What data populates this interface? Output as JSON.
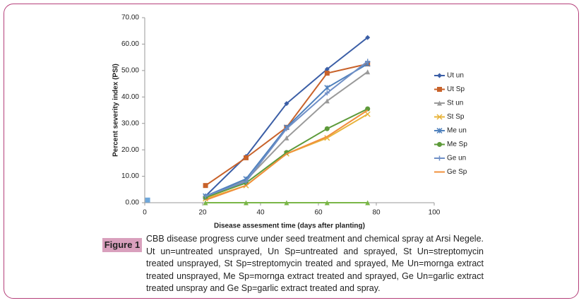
{
  "chart_data": {
    "type": "line",
    "xlabel": "Disease assesment time (days after planting)",
    "ylabel": "Percent severity index (PSI)",
    "xlim": [
      0,
      100
    ],
    "xticks": [
      0,
      20,
      40,
      60,
      80,
      100
    ],
    "ylim": [
      0,
      70
    ],
    "yticks": [
      {
        "value": 0,
        "label": "0.00"
      },
      {
        "value": 10,
        "label": "10.00"
      },
      {
        "value": 20,
        "label": "20.00"
      },
      {
        "value": 30,
        "label": "30.00"
      },
      {
        "value": 40,
        "label": "40.00"
      },
      {
        "value": 50,
        "label": "50.00"
      },
      {
        "value": 60,
        "label": "60.00"
      },
      {
        "value": 70,
        "label": "70.00"
      }
    ],
    "legend": "right",
    "x": [
      21,
      35,
      49,
      63,
      77
    ],
    "series": [
      {
        "name": "Ut un",
        "color": "#3b5ea6",
        "marker": "diamond",
        "values": [
          2.5,
          17.5,
          37.5,
          50.5,
          62.5
        ]
      },
      {
        "name": "Ut Sp",
        "color": "#c8622a",
        "marker": "square",
        "values": [
          6.5,
          17,
          28.5,
          49,
          52.5
        ]
      },
      {
        "name": "St un",
        "color": "#9a9a9a",
        "marker": "triangle",
        "values": [
          2,
          8.5,
          24.5,
          38.5,
          49.5
        ]
      },
      {
        "name": "St Sp",
        "color": "#e8b43c",
        "marker": "x",
        "values": [
          1.5,
          6.5,
          18.5,
          24.5,
          33.5
        ]
      },
      {
        "name": "Me un",
        "color": "#4f81bd",
        "marker": "star",
        "values": [
          2.5,
          9,
          28.5,
          43.5,
          52.5
        ]
      },
      {
        "name": "Me Sp",
        "color": "#5d9a3a",
        "marker": "circle",
        "values": [
          2,
          7.5,
          19,
          28,
          35.5
        ]
      },
      {
        "name": "Ge un",
        "color": "#6f8fc6",
        "marker": "plus",
        "values": [
          2.5,
          8,
          28,
          41.5,
          53.5
        ]
      },
      {
        "name": "Ge Sp",
        "color": "#f0903c",
        "marker": "none",
        "values": [
          1,
          6.5,
          18.5,
          25,
          35
        ]
      },
      {
        "color": "#7ab648",
        "marker": "triangle",
        "values": [
          0,
          0,
          0,
          0,
          0
        ]
      },
      {
        "color": "#6fa8dc",
        "marker": "square",
        "x": [
          1
        ],
        "values": [
          1
        ]
      }
    ]
  },
  "caption": {
    "label": "Figure 1",
    "text": "CBB disease progress curve under seed treatment and chemical spray at Arsi Negele. Ut un=untreated unsprayed, Un Sp=untreated and sprayed, St Un=streptomycin treated unsprayed, St Sp=streptomycin treated and sprayed, Me Un=mornga extract treated unsprayed, Me Sp=mornga extract treated and sprayed, Ge Un=garlic extract treated unspray and Ge Sp=garlic extract treated and spray."
  }
}
